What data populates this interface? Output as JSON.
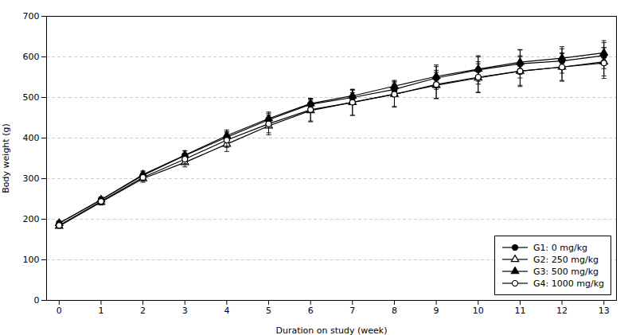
{
  "chart_data": {
    "type": "line",
    "xlabel": "Duration on study (week)",
    "ylabel": "Body weight (g)",
    "x": [
      0,
      1,
      2,
      3,
      4,
      5,
      6,
      7,
      8,
      9,
      10,
      11,
      12,
      13
    ],
    "series": [
      {
        "name": "G1: 0 mg/kg",
        "color": "#000000",
        "marker": "filled_circle",
        "line_style": "solid",
        "values": [
          190,
          248,
          308,
          357,
          402,
          445,
          483,
          500,
          520,
          548,
          568,
          583,
          590,
          603
        ],
        "errors": [
          5,
          7,
          9,
          11,
          14,
          16,
          10,
          12,
          13,
          28,
          35,
          35,
          30,
          32
        ]
      },
      {
        "name": "G2: 250 mg/kg",
        "color": "#000000",
        "marker": "open_triangle",
        "line_style": "solid",
        "values": [
          183,
          242,
          300,
          340,
          385,
          430,
          468,
          488,
          508,
          530,
          548,
          565,
          575,
          588
        ],
        "errors": [
          5,
          7,
          9,
          11,
          18,
          22,
          28,
          32,
          30,
          32,
          35,
          35,
          33,
          35
        ]
      },
      {
        "name": "G3: 500 mg/kg",
        "color": "#000000",
        "marker": "filled_triangle",
        "line_style": "solid",
        "values": [
          190,
          248,
          310,
          358,
          406,
          448,
          485,
          504,
          528,
          552,
          570,
          587,
          597,
          610
        ],
        "errors": [
          5,
          7,
          9,
          11,
          14,
          16,
          12,
          14,
          14,
          28,
          30,
          30,
          28,
          30
        ]
      },
      {
        "name": "G4: 1000 mg/kg",
        "color": "#000000",
        "marker": "open_circle",
        "line_style": "solid",
        "values": [
          185,
          244,
          303,
          348,
          395,
          435,
          470,
          488,
          508,
          532,
          550,
          565,
          575,
          585
        ],
        "errors": [
          5,
          7,
          9,
          11,
          18,
          22,
          28,
          32,
          32,
          35,
          38,
          38,
          35,
          38
        ]
      }
    ],
    "xlim": [
      -0.3,
      13.3
    ],
    "ylim": [
      0,
      700
    ],
    "xticks": [
      0,
      1,
      2,
      3,
      4,
      5,
      6,
      7,
      8,
      9,
      10,
      11,
      12,
      13
    ],
    "yticks": [
      0,
      100,
      200,
      300,
      400,
      500,
      600,
      700
    ],
    "grid": "y",
    "legend": "lower right"
  }
}
